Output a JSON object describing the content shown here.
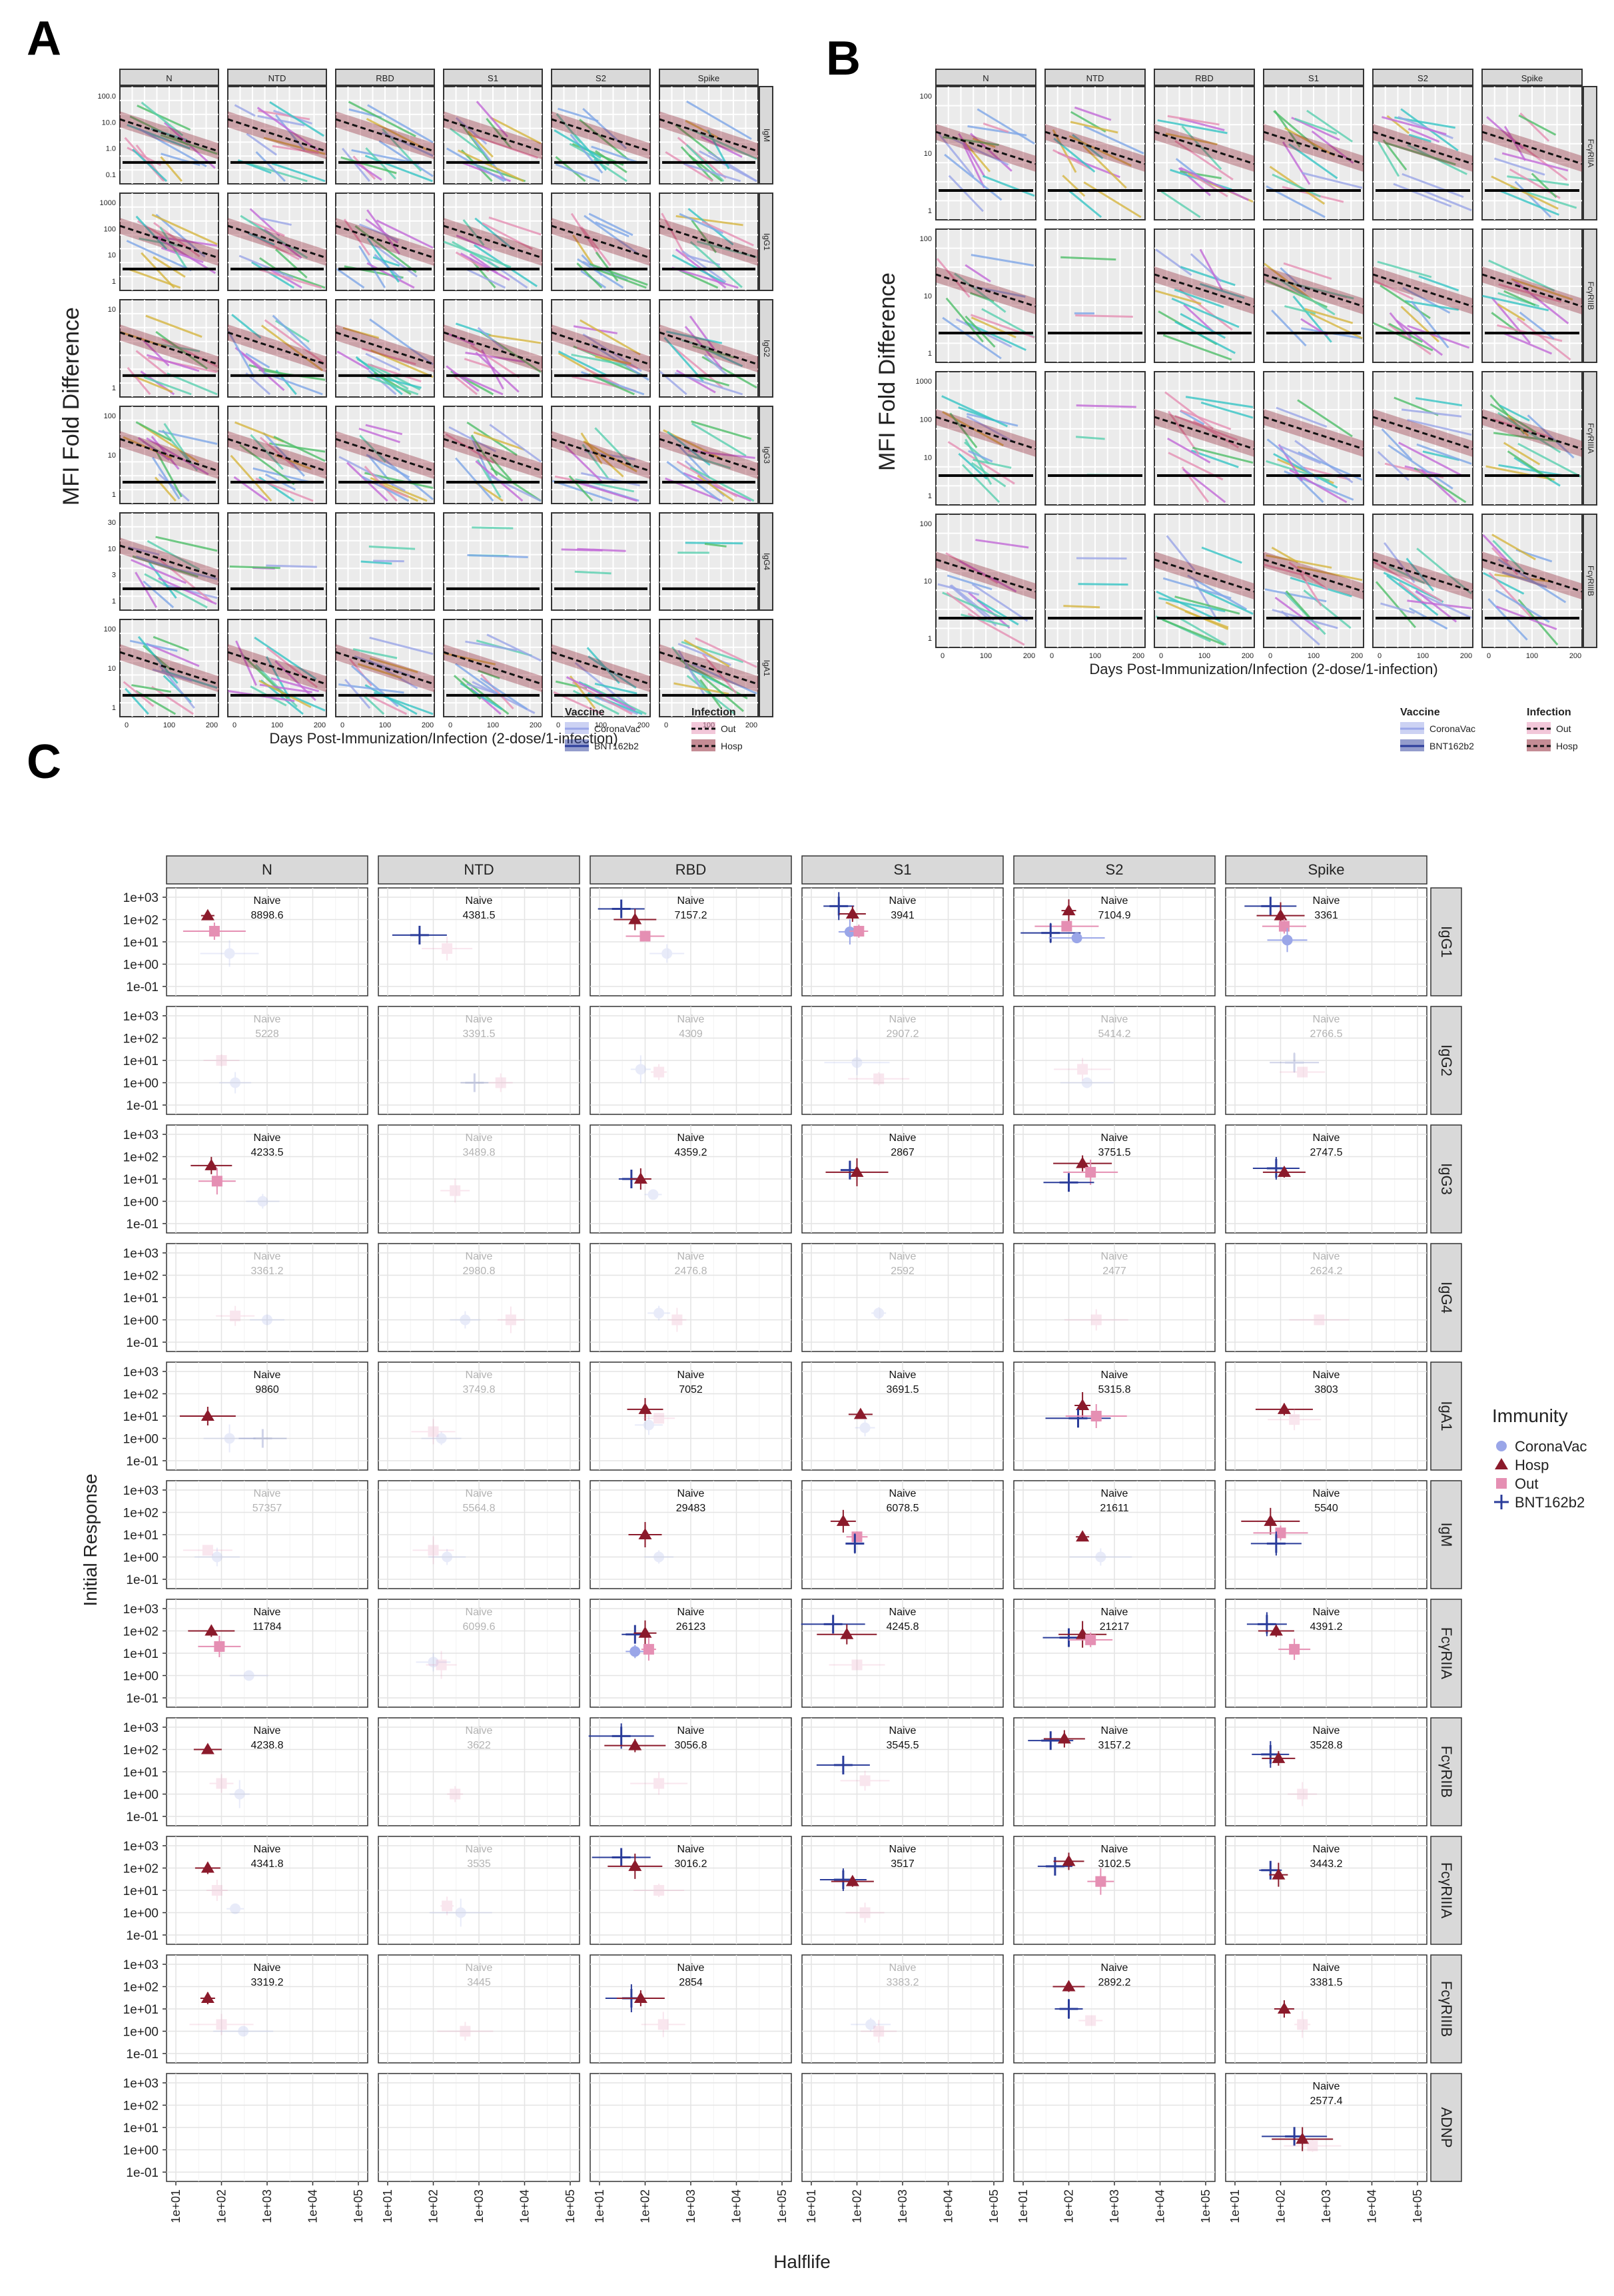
{
  "panel_a": {
    "letter": "A",
    "ylabel": "MFI Fold Difference",
    "xlabel": "Days Post-Immunization/Infection (2-dose/1-infection)",
    "x_ticks": [
      "0",
      "100",
      "200"
    ],
    "columns": [
      "N",
      "NTD",
      "RBD",
      "S1",
      "S2",
      "Spike"
    ],
    "rows": [
      "IgM",
      "IgG1",
      "IgG2",
      "IgG3",
      "IgG4",
      "IgA1"
    ],
    "row_ticks": [
      [
        "100.0",
        "10.0",
        "1.0",
        "0.1"
      ],
      [
        "1000",
        "100",
        "10",
        "1"
      ],
      [
        "10",
        "1"
      ],
      [
        "100",
        "10",
        "1"
      ],
      [
        "30",
        "10",
        "3",
        "1"
      ],
      [
        "100",
        "10",
        "1"
      ]
    ]
  },
  "panel_b": {
    "letter": "B",
    "ylabel": "MFI Fold Difference",
    "xlabel": "Days Post-Immunization/Infection (2-dose/1-infection)",
    "x_ticks": [
      "0",
      "100",
      "200"
    ],
    "columns": [
      "N",
      "NTD",
      "RBD",
      "S1",
      "S2",
      "Spike"
    ],
    "rows": [
      "FcγRIIA",
      "FcγRIIB",
      "FcγRIIIA",
      "FcγRIIIB"
    ],
    "row_ticks": [
      [
        "100",
        "10",
        "1"
      ],
      [
        "100",
        "10",
        "1"
      ],
      [
        "1000",
        "100",
        "10",
        "1"
      ],
      [
        "100",
        "10",
        "1"
      ]
    ]
  },
  "legends_ab": {
    "vaccine_title": "Vaccine",
    "vaccine_items": [
      "CoronaVac",
      "BNT162b2"
    ],
    "infection_title": "Infection",
    "infection_items": [
      "Out",
      "Hosp"
    ]
  },
  "colors": {
    "CoronaVac": "#9aa6e8",
    "Hosp": "#8b1a2b",
    "Out": "#e58fb3",
    "BNT162b2": "#2a3c9a",
    "strip": "#d9d9d9",
    "grid": "#ebebeb"
  },
  "panel_c": {
    "letter": "C",
    "xlabel": "Halflife",
    "ylabel": "Initial Response",
    "legend_title": "Immunity",
    "legend_items": [
      "CoronaVac",
      "Hosp",
      "Out",
      "BNT162b2"
    ],
    "naive_label": "Naive",
    "x_ticks": [
      "1e+01",
      "1e+02",
      "1e+03",
      "1e+04",
      "1e+05"
    ],
    "y_ticks": [
      "1e+03",
      "1e+02",
      "1e+01",
      "1e+00",
      "1e-01"
    ],
    "columns": [
      "N",
      "NTD",
      "RBD",
      "S1",
      "S2",
      "Spike"
    ],
    "rows": [
      "IgG1",
      "IgG2",
      "IgG3",
      "IgG4",
      "IgA1",
      "IgM",
      "FcγRIIA",
      "FcγRIIB",
      "FcγRIIIA",
      "FcγRIIIB",
      "ADNP"
    ]
  },
  "chart_data": {
    "type": "scatter",
    "xlabel": "Halflife",
    "ylabel": "Initial Response",
    "x_scale": "log10",
    "y_scale": "log10",
    "xlim": [
      10,
      100000
    ],
    "ylim": [
      0.1,
      1000
    ],
    "series": [
      "CoronaVac",
      "Hosp",
      "Out",
      "BNT162b2"
    ],
    "naive_values": [
      [
        "8898.6",
        "4381.5",
        "7157.2",
        "3941",
        "7104.9",
        "3361"
      ],
      [
        "5228",
        "3391.5",
        "4309",
        "2907.2",
        "5414.2",
        "2766.5"
      ],
      [
        "4233.5",
        "3489.8",
        "4359.2",
        "2867",
        "3751.5",
        "2747.5"
      ],
      [
        "3361.2",
        "2980.8",
        "2476.8",
        "2592",
        "2477",
        "2624.2"
      ],
      [
        "9860",
        "3749.8",
        "7052",
        "3691.5",
        "5315.8",
        "3803"
      ],
      [
        "57357",
        "5564.8",
        "29483",
        "6078.5",
        "21611",
        "5540"
      ],
      [
        "11784",
        "6099.6",
        "26123",
        "4245.8",
        "21217",
        "4391.2"
      ],
      [
        "4238.8",
        "3622",
        "3056.8",
        "3545.5",
        "3157.2",
        "3528.8"
      ],
      [
        "4341.8",
        "3535",
        "3016.2",
        "3517",
        "3102.5",
        "3443.2"
      ],
      [
        "3319.2",
        "3445",
        "2854",
        "3383.2",
        "2892.2",
        "3381.5"
      ],
      [
        "",
        "",
        "",
        "",
        "",
        "2577.4"
      ]
    ],
    "naive_faded": [
      [
        false,
        false,
        false,
        false,
        false,
        false
      ],
      [
        true,
        true,
        true,
        true,
        true,
        true
      ],
      [
        false,
        true,
        false,
        false,
        false,
        false
      ],
      [
        true,
        true,
        true,
        true,
        true,
        true
      ],
      [
        false,
        true,
        false,
        false,
        false,
        false
      ],
      [
        true,
        true,
        false,
        false,
        false,
        false
      ],
      [
        false,
        true,
        false,
        false,
        false,
        false
      ],
      [
        false,
        true,
        false,
        false,
        false,
        false
      ],
      [
        false,
        true,
        false,
        false,
        false,
        false
      ],
      [
        false,
        true,
        false,
        true,
        false,
        false
      ],
      [
        true,
        true,
        true,
        true,
        true,
        false
      ]
    ],
    "points": [
      [
        0,
        0,
        "Hosp",
        50,
        150,
        false
      ],
      [
        0,
        0,
        "Out",
        70,
        30,
        false
      ],
      [
        0,
        0,
        "CoronaVac",
        150,
        3,
        true
      ],
      [
        0,
        1,
        "BNT162b2",
        50,
        20,
        false
      ],
      [
        0,
        1,
        "Out",
        200,
        5,
        true
      ],
      [
        0,
        2,
        "BNT162b2",
        30,
        300,
        false
      ],
      [
        0,
        2,
        "Hosp",
        60,
        100,
        false
      ],
      [
        0,
        2,
        "Out",
        100,
        18,
        false
      ],
      [
        0,
        2,
        "CoronaVac",
        300,
        3,
        true
      ],
      [
        0,
        3,
        "BNT162b2",
        40,
        400,
        false
      ],
      [
        0,
        3,
        "Hosp",
        80,
        180,
        false
      ],
      [
        0,
        3,
        "CoronaVac",
        70,
        28,
        false
      ],
      [
        0,
        3,
        "Out",
        110,
        30,
        false
      ],
      [
        0,
        4,
        "Hosp",
        100,
        250,
        false
      ],
      [
        0,
        4,
        "Out",
        90,
        50,
        false
      ],
      [
        0,
        4,
        "BNT162b2",
        40,
        25,
        false
      ],
      [
        0,
        4,
        "CoronaVac",
        150,
        15,
        false
      ],
      [
        0,
        5,
        "BNT162b2",
        60,
        400,
        false
      ],
      [
        0,
        5,
        "Hosp",
        100,
        150,
        false
      ],
      [
        0,
        5,
        "Out",
        120,
        50,
        false
      ],
      [
        0,
        5,
        "CoronaVac",
        140,
        12,
        false
      ],
      [
        1,
        0,
        "Out",
        100,
        10,
        true
      ],
      [
        1,
        0,
        "CoronaVac",
        200,
        1,
        true
      ],
      [
        1,
        1,
        "BNT162b2",
        800,
        1,
        true
      ],
      [
        1,
        1,
        "Out",
        3000,
        1,
        true
      ],
      [
        1,
        2,
        "CoronaVac",
        80,
        4,
        true
      ],
      [
        1,
        2,
        "Out",
        200,
        3,
        true
      ],
      [
        1,
        3,
        "CoronaVac",
        100,
        8,
        true
      ],
      [
        1,
        3,
        "Out",
        300,
        1.5,
        true
      ],
      [
        1,
        4,
        "Out",
        200,
        4,
        true
      ],
      [
        1,
        4,
        "CoronaVac",
        250,
        1,
        true
      ],
      [
        1,
        5,
        "BNT162b2",
        200,
        8,
        true
      ],
      [
        1,
        5,
        "Out",
        300,
        3,
        true
      ],
      [
        2,
        0,
        "Hosp",
        60,
        40,
        false
      ],
      [
        2,
        0,
        "Out",
        80,
        8,
        false
      ],
      [
        2,
        0,
        "CoronaVac",
        800,
        1,
        true
      ],
      [
        2,
        1,
        "Out",
        300,
        3,
        true
      ],
      [
        2,
        2,
        "BNT162b2",
        50,
        10,
        false
      ],
      [
        2,
        2,
        "Hosp",
        80,
        10,
        false
      ],
      [
        2,
        2,
        "CoronaVac",
        150,
        2,
        true
      ],
      [
        2,
        3,
        "BNT162b2",
        70,
        25,
        false
      ],
      [
        2,
        3,
        "Hosp",
        100,
        20,
        false
      ],
      [
        2,
        4,
        "Hosp",
        200,
        50,
        false
      ],
      [
        2,
        4,
        "Out",
        300,
        20,
        false
      ],
      [
        2,
        4,
        "BNT162b2",
        100,
        7,
        false
      ],
      [
        2,
        5,
        "BNT162b2",
        80,
        30,
        false
      ],
      [
        2,
        5,
        "Hosp",
        120,
        20,
        false
      ],
      [
        3,
        0,
        "Out",
        200,
        1.5,
        true
      ],
      [
        3,
        0,
        "CoronaVac",
        1000,
        1,
        true
      ],
      [
        3,
        1,
        "CoronaVac",
        500,
        1,
        true
      ],
      [
        3,
        1,
        "Out",
        5000,
        1,
        true
      ],
      [
        3,
        2,
        "CoronaVac",
        200,
        2,
        true
      ],
      [
        3,
        2,
        "Out",
        500,
        1,
        true
      ],
      [
        3,
        3,
        "CoronaVac",
        300,
        2,
        true
      ],
      [
        3,
        4,
        "Out",
        400,
        1,
        true
      ],
      [
        3,
        5,
        "Out",
        700,
        1,
        true
      ],
      [
        4,
        0,
        "Hosp",
        50,
        10,
        false
      ],
      [
        4,
        0,
        "CoronaVac",
        150,
        1,
        true
      ],
      [
        4,
        0,
        "BNT162b2",
        800,
        1,
        true
      ],
      [
        4,
        1,
        "Out",
        100,
        2,
        true
      ],
      [
        4,
        1,
        "CoronaVac",
        150,
        1,
        true
      ],
      [
        4,
        2,
        "Hosp",
        100,
        20,
        false
      ],
      [
        4,
        2,
        "Out",
        200,
        8,
        true
      ],
      [
        4,
        2,
        "CoronaVac",
        120,
        4,
        true
      ],
      [
        4,
        3,
        "Hosp",
        120,
        12,
        false
      ],
      [
        4,
        3,
        "CoronaVac",
        150,
        3,
        true
      ],
      [
        4,
        4,
        "Hosp",
        200,
        30,
        false
      ],
      [
        4,
        4,
        "BNT162b2",
        160,
        8,
        false
      ],
      [
        4,
        4,
        "Out",
        400,
        10,
        false
      ],
      [
        4,
        5,
        "Hosp",
        120,
        20,
        false
      ],
      [
        4,
        5,
        "Out",
        200,
        7,
        true
      ],
      [
        5,
        0,
        "Out",
        50,
        2,
        true
      ],
      [
        5,
        0,
        "CoronaVac",
        80,
        1,
        true
      ],
      [
        5,
        1,
        "Out",
        100,
        2,
        true
      ],
      [
        5,
        1,
        "CoronaVac",
        200,
        1,
        true
      ],
      [
        5,
        2,
        "Hosp",
        100,
        10,
        false
      ],
      [
        5,
        2,
        "CoronaVac",
        200,
        1,
        true
      ],
      [
        5,
        3,
        "Hosp",
        50,
        40,
        false
      ],
      [
        5,
        3,
        "Out",
        100,
        8,
        false
      ],
      [
        5,
        3,
        "BNT162b2",
        90,
        4,
        false
      ],
      [
        5,
        4,
        "Hosp",
        200,
        8,
        false
      ],
      [
        5,
        4,
        "CoronaVac",
        500,
        1,
        true
      ],
      [
        5,
        5,
        "Hosp",
        60,
        40,
        false
      ],
      [
        5,
        5,
        "Out",
        100,
        12,
        false
      ],
      [
        5,
        5,
        "BNT162b2",
        80,
        4,
        false
      ],
      [
        6,
        0,
        "Hosp",
        60,
        100,
        false
      ],
      [
        6,
        0,
        "Out",
        90,
        20,
        false
      ],
      [
        6,
        0,
        "CoronaVac",
        400,
        1,
        true
      ],
      [
        6,
        1,
        "CoronaVac",
        100,
        4,
        true
      ],
      [
        6,
        1,
        "Out",
        150,
        3,
        true
      ],
      [
        6,
        2,
        "BNT162b2",
        60,
        70,
        false
      ],
      [
        6,
        2,
        "Hosp",
        100,
        80,
        false
      ],
      [
        6,
        2,
        "CoronaVac",
        60,
        12,
        false
      ],
      [
        6,
        2,
        "Out",
        120,
        15,
        false
      ],
      [
        6,
        3,
        "BNT162b2",
        30,
        200,
        false
      ],
      [
        6,
        3,
        "Hosp",
        60,
        70,
        false
      ],
      [
        6,
        3,
        "Out",
        100,
        3,
        true
      ],
      [
        6,
        4,
        "BNT162b2",
        100,
        50,
        false
      ],
      [
        6,
        4,
        "Hosp",
        200,
        70,
        false
      ],
      [
        6,
        4,
        "Out",
        300,
        40,
        false
      ],
      [
        6,
        5,
        "BNT162b2",
        50,
        200,
        false
      ],
      [
        6,
        5,
        "Hosp",
        80,
        100,
        false
      ],
      [
        6,
        5,
        "Out",
        200,
        15,
        false
      ],
      [
        7,
        0,
        "Hosp",
        50,
        100,
        false
      ],
      [
        7,
        0,
        "Out",
        100,
        3,
        true
      ],
      [
        7,
        0,
        "CoronaVac",
        250,
        1,
        true
      ],
      [
        7,
        1,
        "Out",
        300,
        1,
        true
      ],
      [
        7,
        2,
        "BNT162b2",
        30,
        400,
        false
      ],
      [
        7,
        2,
        "Hosp",
        60,
        150,
        false
      ],
      [
        7,
        2,
        "Out",
        200,
        3,
        true
      ],
      [
        7,
        3,
        "BNT162b2",
        50,
        20,
        false
      ],
      [
        7,
        3,
        "Out",
        150,
        4,
        true
      ],
      [
        7,
        4,
        "BNT162b2",
        40,
        250,
        false
      ],
      [
        7,
        4,
        "Hosp",
        80,
        300,
        false
      ],
      [
        7,
        5,
        "BNT162b2",
        60,
        60,
        false
      ],
      [
        7,
        5,
        "Hosp",
        90,
        40,
        false
      ],
      [
        7,
        5,
        "Out",
        300,
        1,
        true
      ],
      [
        8,
        0,
        "Hosp",
        50,
        100,
        false
      ],
      [
        8,
        0,
        "Out",
        80,
        10,
        true
      ],
      [
        8,
        0,
        "CoronaVac",
        200,
        1.5,
        true
      ],
      [
        8,
        1,
        "Out",
        200,
        2,
        true
      ],
      [
        8,
        1,
        "CoronaVac",
        400,
        1,
        true
      ],
      [
        8,
        2,
        "BNT162b2",
        30,
        300,
        false
      ],
      [
        8,
        2,
        "Hosp",
        60,
        120,
        false
      ],
      [
        8,
        2,
        "Out",
        200,
        10,
        true
      ],
      [
        8,
        3,
        "BNT162b2",
        50,
        30,
        false
      ],
      [
        8,
        3,
        "Hosp",
        80,
        25,
        false
      ],
      [
        8,
        3,
        "Out",
        150,
        1,
        true
      ],
      [
        8,
        4,
        "BNT162b2",
        50,
        120,
        false
      ],
      [
        8,
        4,
        "Hosp",
        100,
        200,
        false
      ],
      [
        8,
        4,
        "Out",
        500,
        25,
        false
      ],
      [
        8,
        5,
        "BNT162b2",
        60,
        80,
        false
      ],
      [
        8,
        5,
        "Hosp",
        90,
        50,
        false
      ],
      [
        9,
        0,
        "Hosp",
        50,
        30,
        false
      ],
      [
        9,
        0,
        "Out",
        100,
        2,
        true
      ],
      [
        9,
        0,
        "CoronaVac",
        300,
        1,
        true
      ],
      [
        9,
        1,
        "Out",
        500,
        1,
        true
      ],
      [
        9,
        2,
        "BNT162b2",
        50,
        30,
        false
      ],
      [
        9,
        2,
        "Hosp",
        80,
        30,
        false
      ],
      [
        9,
        2,
        "Out",
        250,
        2,
        true
      ],
      [
        9,
        3,
        "CoronaVac",
        200,
        2,
        true
      ],
      [
        9,
        3,
        "Out",
        300,
        1,
        true
      ],
      [
        9,
        4,
        "Hosp",
        100,
        100,
        false
      ],
      [
        9,
        4,
        "BNT162b2",
        100,
        10,
        false
      ],
      [
        9,
        4,
        "Out",
        300,
        3,
        true
      ],
      [
        9,
        5,
        "Hosp",
        120,
        10,
        false
      ],
      [
        9,
        5,
        "Out",
        300,
        2,
        true
      ],
      [
        10,
        5,
        "BNT162b2",
        200,
        4,
        false
      ],
      [
        10,
        5,
        "Hosp",
        300,
        3,
        false
      ],
      [
        10,
        5,
        "Out",
        500,
        1.5,
        true
      ]
    ]
  }
}
